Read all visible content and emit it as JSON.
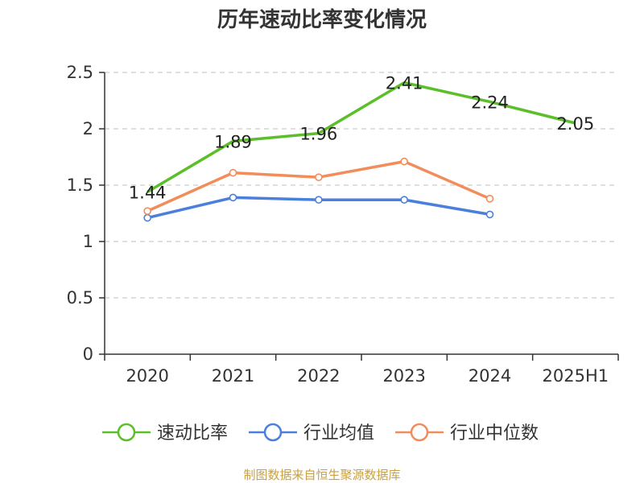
{
  "chart_data": {
    "type": "line",
    "title": "历年速动比率变化情况",
    "categories": [
      "2020",
      "2021",
      "2022",
      "2023",
      "2024",
      "2025H1"
    ],
    "ylim": [
      0,
      2.5
    ],
    "yticks": [
      "0",
      "0.5",
      "1",
      "1.5",
      "2",
      "2.5"
    ],
    "grid": true,
    "legend_position": "bottom",
    "series": [
      {
        "name": "速动比率",
        "color": "#5bbf2a",
        "values": [
          1.44,
          1.89,
          1.96,
          2.41,
          2.24,
          2.05
        ],
        "labels": [
          "1.44",
          "1.89",
          "1.96",
          "2.41",
          "2.24",
          "2.05"
        ]
      },
      {
        "name": "行业均值",
        "color": "#4a7fdb",
        "values": [
          1.21,
          1.39,
          1.37,
          1.37,
          1.24,
          null
        ]
      },
      {
        "name": "行业中位数",
        "color": "#f28c5a",
        "values": [
          1.27,
          1.61,
          1.57,
          1.71,
          1.38,
          null
        ]
      }
    ]
  },
  "source": "制图数据来自恒生聚源数据库"
}
